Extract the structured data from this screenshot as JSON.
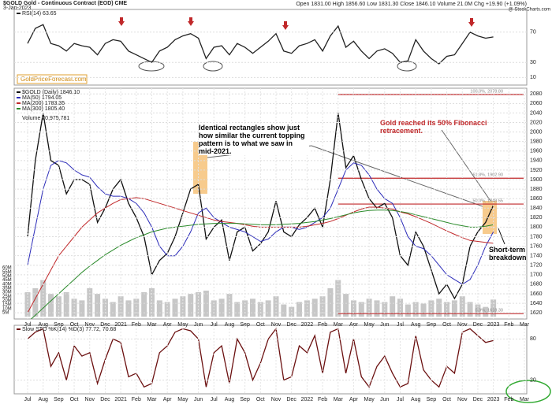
{
  "header": {
    "symbol": "$GOLD Gold - Continuous Contract (EOD) CME",
    "date": "3-Jan-2023",
    "quote": "Open 1831.00 High 1856.60 Low 1831.30 Close 1846.10 Volume 21.0M Chg +19.90 (+1.09%)",
    "source": "@ StockCharts.com",
    "logo": "GoldPriceForecast.com"
  },
  "chart_data": [
    {
      "type": "line",
      "ylim": [
        0,
        100
      ],
      "yticks": [
        10,
        30,
        70
      ],
      "series": [
        {
          "name": "RSI(14) 63.65",
          "color": "#222222",
          "values": [
            55,
            75,
            80,
            55,
            52,
            45,
            55,
            52,
            50,
            40,
            55,
            60,
            58,
            45,
            40,
            35,
            30,
            45,
            50,
            60,
            65,
            68,
            62,
            35,
            50,
            52,
            40,
            55,
            50,
            42,
            50,
            58,
            68,
            45,
            42,
            52,
            55,
            60,
            45,
            65,
            78,
            50,
            58,
            45,
            35,
            45,
            48,
            42,
            30,
            32,
            60,
            45,
            35,
            28,
            38,
            40,
            55,
            70,
            65,
            62,
            63.65,
            null,
            null,
            null,
            null
          ]
        }
      ]
    },
    {
      "type": "line",
      "ylim": [
        1607,
        2092
      ],
      "yticks": [
        1620,
        1640,
        1660,
        1680,
        1700,
        1720,
        1740,
        1760,
        1780,
        1800,
        1820,
        1840,
        1860,
        1880,
        1900,
        1920,
        1940,
        1960,
        1980,
        2000,
        2020,
        2040,
        2060,
        2080
      ],
      "categories": [
        "Jul",
        null,
        "Aug",
        null,
        "Sep",
        null,
        "Oct",
        null,
        "Nov",
        null,
        "Dec",
        null,
        "2021",
        null,
        "Feb",
        null,
        "Mar",
        null,
        "Apr",
        null,
        "May",
        null,
        "Jun",
        null,
        "Jul",
        null,
        "Aug",
        null,
        "Sep",
        null,
        "Oct",
        null,
        "Nov",
        null,
        "Dec",
        null,
        "2022",
        null,
        "Feb",
        null,
        "Mar",
        null,
        "Apr",
        null,
        "May",
        null,
        "Jun",
        null,
        "Jul",
        null,
        "Aug",
        null,
        "Sep",
        null,
        "Oct",
        null,
        "Nov",
        null,
        "Dec",
        null,
        "2023",
        null,
        "Feb",
        null,
        "Mar"
      ],
      "series": [
        {
          "name": "$GOLD (Daily) 1846.10",
          "color": "#111111",
          "values": [
            1780,
            1940,
            2040,
            1940,
            1930,
            1870,
            1900,
            1900,
            1890,
            1810,
            1840,
            1880,
            1900,
            1850,
            1820,
            1780,
            1700,
            1730,
            1745,
            1780,
            1830,
            1880,
            1890,
            1775,
            1800,
            1815,
            1730,
            1790,
            1800,
            1750,
            1765,
            1790,
            1855,
            1790,
            1780,
            1805,
            1820,
            1840,
            1800,
            1900,
            2040,
            1925,
            1950,
            1900,
            1860,
            1840,
            1850,
            1820,
            1740,
            1720,
            1790,
            1760,
            1710,
            1660,
            1680,
            1650,
            1680,
            1760,
            1790,
            1810,
            1846.1,
            null,
            null,
            null,
            null
          ]
        },
        {
          "name": "MA(50) 1794.05",
          "color": "#2b2bb8",
          "values": [
            1720,
            1800,
            1880,
            1930,
            1940,
            1935,
            1920,
            1910,
            1905,
            1885,
            1870,
            1865,
            1865,
            1860,
            1850,
            1830,
            1800,
            1760,
            1740,
            1740,
            1760,
            1790,
            1830,
            1840,
            1820,
            1810,
            1800,
            1795,
            1790,
            1780,
            1770,
            1775,
            1790,
            1800,
            1800,
            1795,
            1800,
            1810,
            1820,
            1840,
            1880,
            1920,
            1935,
            1930,
            1910,
            1880,
            1860,
            1850,
            1820,
            1780,
            1760,
            1755,
            1740,
            1720,
            1700,
            1690,
            1680,
            1690,
            1720,
            1760,
            1790,
            null,
            null,
            null,
            null
          ]
        },
        {
          "name": "MA(200) 1783.35",
          "color": "#c0282a",
          "values": [
            1620,
            1650,
            1680,
            1710,
            1740,
            1760,
            1780,
            1800,
            1815,
            1830,
            1840,
            1850,
            1858,
            1860,
            1862,
            1860,
            1855,
            1850,
            1845,
            1840,
            1835,
            1830,
            1825,
            1820,
            1815,
            1812,
            1810,
            1808,
            1805,
            1802,
            1800,
            1800,
            1800,
            1800,
            1800,
            1800,
            1802,
            1805,
            1808,
            1812,
            1818,
            1825,
            1832,
            1838,
            1842,
            1842,
            1840,
            1838,
            1832,
            1828,
            1822,
            1815,
            1808,
            1800,
            1792,
            1785,
            1778,
            1772,
            1770,
            1768,
            1766,
            null,
            null,
            null,
            null
          ]
        },
        {
          "name": "MA(300) 1805.40",
          "color": "#2a8a2a",
          "values": [
            1600,
            1615,
            1630,
            1645,
            1660,
            1675,
            1690,
            1705,
            1718,
            1730,
            1742,
            1752,
            1762,
            1770,
            1778,
            1784,
            1790,
            1794,
            1798,
            1800,
            1802,
            1804,
            1806,
            1807,
            1808,
            1808,
            1808,
            1808,
            1807,
            1806,
            1805,
            1805,
            1805,
            1806,
            1807,
            1808,
            1810,
            1812,
            1815,
            1818,
            1822,
            1826,
            1830,
            1833,
            1835,
            1836,
            1836,
            1835,
            1833,
            1830,
            1826,
            1822,
            1818,
            1814,
            1810,
            1806,
            1803,
            1800,
            1800,
            1802,
            1805,
            null,
            null,
            null,
            null
          ]
        }
      ],
      "volume": {
        "name": "Volume 20,975,781",
        "color": "#b9b9b9",
        "ylim": [
          0,
          62
        ],
        "yticks": [
          {
            "value": 5,
            "label": "5M"
          },
          {
            "value": 10,
            "label": "10M"
          },
          {
            "value": 15,
            "label": "15M"
          },
          {
            "value": 20,
            "label": "20M"
          },
          {
            "value": 25,
            "label": "25M"
          },
          {
            "value": 30,
            "label": "30M"
          },
          {
            "value": 35,
            "label": "35M"
          },
          {
            "value": 40,
            "label": "40M"
          },
          {
            "value": 45,
            "label": "45M"
          },
          {
            "value": 50,
            "label": "50M"
          },
          {
            "value": 55,
            "label": "55M"
          },
          {
            "value": 60,
            "label": "60M"
          }
        ],
        "values": [
          30,
          35,
          45,
          28,
          25,
          30,
          22,
          20,
          35,
          28,
          22,
          18,
          25,
          20,
          22,
          30,
          35,
          20,
          18,
          22,
          25,
          28,
          30,
          32,
          20,
          22,
          28,
          18,
          20,
          22,
          18,
          20,
          25,
          15,
          12,
          18,
          20,
          22,
          25,
          35,
          45,
          28,
          20,
          18,
          22,
          20,
          18,
          25,
          22,
          15,
          18,
          16,
          20,
          22,
          18,
          20,
          25,
          18,
          15,
          12,
          21,
          null,
          null,
          null,
          null
        ]
      },
      "fib_levels": [
        {
          "value": 2078.8,
          "label": "100.0%, 2078.80"
        },
        {
          "value": 1902.9,
          "label": "61.8%, 1902.90"
        },
        {
          "value": 1848.55,
          "label": "50.0%, 1848.55"
        },
        {
          "value": 1618.3,
          "label": "0.0%, 1618.30"
        }
      ],
      "annotations": [
        "Identical rectangles show just how similar the current topping pattern is to what we saw in mid-2021.",
        "Gold reached its 50% Fibonacci retracement.",
        "Short-term breakdown"
      ]
    },
    {
      "type": "line",
      "ylim": [
        0,
        100
      ],
      "yticks": [
        20,
        80
      ],
      "categories": [
        "Jul",
        null,
        "Aug",
        null,
        "Sep",
        null,
        "Oct",
        null,
        "Nov",
        null,
        "Dec",
        null,
        "2021",
        null,
        "Feb",
        null,
        "Mar",
        null,
        "Apr",
        null,
        "May",
        null,
        "Jun",
        null,
        "Jul",
        null,
        "Aug",
        null,
        "Sep",
        null,
        "Oct",
        null,
        "Nov",
        null,
        "Dec",
        null,
        "2022",
        null,
        "Feb",
        null,
        "Mar",
        null,
        "Apr",
        null,
        "May",
        null,
        "Jun",
        null,
        "Jul",
        null,
        "Aug",
        null,
        "Sep",
        null,
        "Oct",
        null,
        "Nov",
        null,
        "Dec",
        null,
        "2023",
        null,
        "Feb",
        null,
        "Mar"
      ],
      "series": [
        {
          "name": "Slow STO %K(14) %D(3) 77.72, 70.68",
          "color": "#6b1010",
          "values": [
            80,
            90,
            95,
            40,
            60,
            20,
            70,
            55,
            60,
            15,
            50,
            80,
            75,
            25,
            30,
            10,
            15,
            60,
            70,
            90,
            95,
            92,
            80,
            10,
            60,
            70,
            15,
            80,
            60,
            20,
            45,
            80,
            95,
            20,
            25,
            70,
            60,
            85,
            30,
            90,
            95,
            30,
            80,
            25,
            10,
            40,
            55,
            30,
            10,
            15,
            85,
            35,
            20,
            10,
            40,
            30,
            90,
            95,
            85,
            75,
            77.72,
            null,
            null,
            null,
            null
          ]
        }
      ]
    }
  ]
}
